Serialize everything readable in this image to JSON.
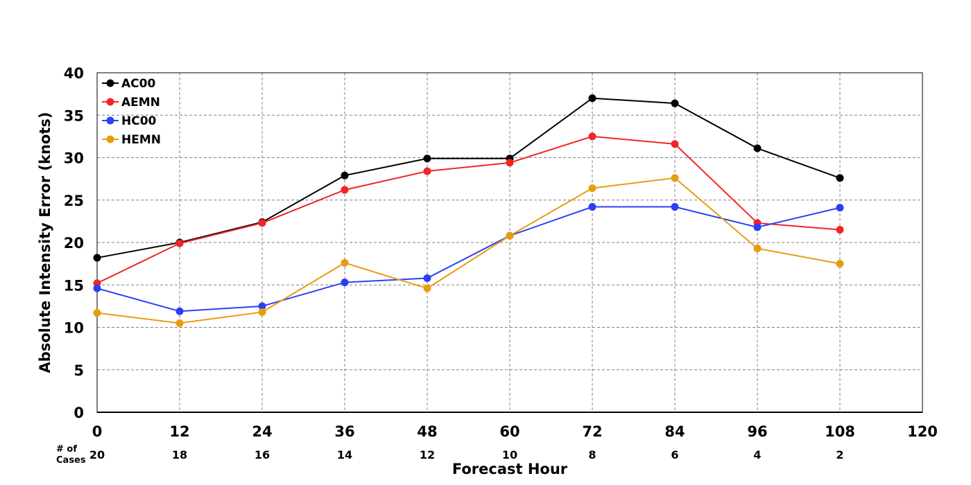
{
  "chart_data": {
    "type": "line",
    "xlabel": "Forecast Hour",
    "ylabel": "Absolute Intensity Error (knots)",
    "xlim": [
      0,
      120
    ],
    "ylim": [
      0,
      40
    ],
    "xticks": [
      "0",
      "12",
      "24",
      "36",
      "48",
      "60",
      "72",
      "84",
      "96",
      "108",
      "120"
    ],
    "yticks": [
      "0",
      "5",
      "10",
      "15",
      "20",
      "25",
      "30",
      "35",
      "40"
    ],
    "grid": true,
    "legend_position": "top-left",
    "x": [
      0,
      12,
      24,
      36,
      48,
      60,
      72,
      84,
      96,
      108
    ],
    "cases_label_line1": "# of",
    "cases_label_line2": "Cases",
    "cases": [
      "20",
      "18",
      "16",
      "14",
      "12",
      "10",
      "8",
      "6",
      "4",
      "2"
    ],
    "series": [
      {
        "name": "AC00",
        "color": "#000000",
        "values": [
          18.2,
          20.0,
          22.4,
          27.9,
          29.9,
          29.9,
          37.0,
          36.4,
          31.1,
          27.6
        ]
      },
      {
        "name": "AEMN",
        "color": "#f02626",
        "values": [
          15.2,
          19.9,
          22.3,
          26.2,
          28.4,
          29.4,
          32.5,
          31.6,
          22.3,
          21.5
        ]
      },
      {
        "name": "HC00",
        "color": "#2a40f5",
        "values": [
          14.6,
          11.9,
          12.5,
          15.3,
          15.8,
          20.8,
          24.2,
          24.2,
          21.8,
          24.1
        ]
      },
      {
        "name": "HEMN",
        "color": "#e89c10",
        "values": [
          11.7,
          10.5,
          11.8,
          17.6,
          14.6,
          20.8,
          26.4,
          27.6,
          19.3,
          17.5
        ]
      }
    ]
  }
}
